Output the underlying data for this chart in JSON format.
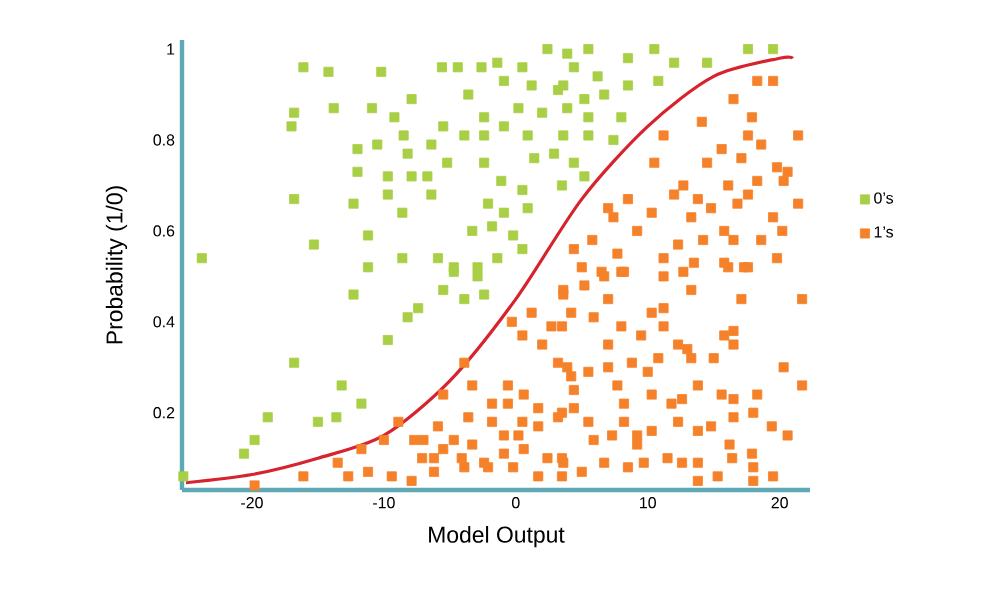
{
  "chart_data": {
    "type": "scatter",
    "xlabel": "Model Output",
    "ylabel": "Probability (1/0)",
    "xlim": [
      -25.3,
      22.3
    ],
    "ylim": [
      0.03,
      1.02
    ],
    "xticks": [
      -20,
      -10,
      0,
      10,
      20
    ],
    "yticks": [
      0.2,
      0.4,
      0.6,
      0.8,
      1
    ],
    "marker": "square",
    "legend": "right",
    "series": [
      {
        "name": "0’s",
        "color": "#a8cf45",
        "x": [
          -16.1,
          -14.2,
          -10.2,
          -16.8,
          -17,
          -13.8,
          -10.9,
          -7.9,
          -9.2,
          -12,
          -10.5,
          -8.5,
          -8.2,
          -6.4,
          -12,
          -9.7,
          -7.9,
          -6.7,
          -9.7,
          -6.4,
          -5.2,
          -3.9,
          -5.5,
          -2.4,
          -3.6,
          -5.6,
          -4.4,
          -2.6,
          -1.4,
          0.5,
          2.4,
          3.9,
          -0.9,
          1.2,
          3.2,
          0.2,
          -2.4,
          2.0,
          -0.9,
          0.9,
          1.4,
          2.9,
          3.6,
          -2.4,
          -1.1,
          0.5,
          0.9,
          -0.9,
          -2.1,
          -3.3,
          -1.8,
          -0.2,
          -1.4,
          0.5,
          3.5,
          -16.8,
          -12.3,
          -8.6,
          -11.2,
          -15.3,
          -23.8,
          -8.6,
          -5.9,
          -2.9,
          -4.7,
          5.5,
          4.4,
          8.5,
          10.5,
          12,
          14.5,
          17.6,
          19.5,
          6.2,
          3.6,
          8.5,
          10.8,
          5.2,
          6.7,
          3.9,
          8.0,
          5.5,
          5.5,
          7.4,
          4.4,
          5.2,
          -11.2,
          -4.7,
          -2.9,
          -5.5,
          -3.9,
          -2.4,
          -12.3,
          -7.4,
          -8.2,
          -9.7,
          -16.8,
          -13.2,
          -11.7,
          -18.8,
          -15,
          -13.6,
          -19.8,
          -20.6,
          -25.2
        ],
        "values": [
          0.96,
          0.95,
          0.95,
          0.86,
          0.83,
          0.87,
          0.87,
          0.89,
          0.85,
          0.78,
          0.79,
          0.81,
          0.77,
          0.79,
          0.73,
          0.72,
          0.72,
          0.72,
          0.68,
          0.68,
          0.75,
          0.81,
          0.83,
          0.81,
          0.9,
          0.96,
          0.96,
          0.96,
          0.97,
          0.96,
          1.0,
          0.99,
          0.93,
          0.92,
          0.91,
          0.87,
          0.85,
          0.86,
          0.83,
          0.81,
          0.76,
          0.77,
          0.81,
          0.75,
          0.71,
          0.69,
          0.65,
          0.64,
          0.66,
          0.6,
          0.61,
          0.59,
          0.54,
          0.56,
          0.7,
          0.67,
          0.66,
          0.64,
          0.59,
          0.57,
          0.54,
          0.54,
          0.54,
          0.52,
          0.51,
          1.0,
          0.96,
          0.98,
          1.0,
          0.97,
          0.97,
          1.0,
          1.0,
          0.94,
          0.92,
          0.92,
          0.93,
          0.89,
          0.9,
          0.87,
          0.85,
          0.85,
          0.81,
          0.8,
          0.75,
          0.72,
          0.52,
          0.52,
          0.5,
          0.47,
          0.45,
          0.46,
          0.46,
          0.43,
          0.41,
          0.36,
          0.31,
          0.26,
          0.22,
          0.19,
          0.18,
          0.19,
          0.14,
          0.11,
          0.06
        ]
      },
      {
        "name": "1’s",
        "color": "#f5822a",
        "x": [
          18.3,
          19.5,
          16.5,
          14.1,
          17.9,
          11.2,
          15.6,
          17.6,
          18.6,
          21.4,
          17.1,
          10.5,
          14.5,
          19.8,
          20.6,
          20.3,
          18.3,
          16.1,
          12.7,
          12,
          13.8,
          17.6,
          8.5,
          7.0,
          10.3,
          14.8,
          16.8,
          21.4,
          7.4,
          13.3,
          19.5,
          20.2,
          9.2,
          15.8,
          5.8,
          12.3,
          14.2,
          16.5,
          18.6,
          4.4,
          7.7,
          11.2,
          19.8,
          6.5,
          8.2,
          13.5,
          15.8,
          17.3,
          5,
          6.7,
          8,
          11.2,
          12.7,
          16.1,
          17.6,
          5.2,
          3.6,
          7.0,
          13.3,
          17.1,
          21.7,
          4.2,
          5.9,
          10.3,
          11.2,
          11.2,
          8,
          3.5,
          9.5,
          7,
          16.5,
          15.8,
          12.3,
          13,
          16.5,
          10.8,
          15,
          8.8,
          13.3,
          3.9,
          7,
          5.5,
          10,
          20.3,
          4.2,
          7.7,
          21.7,
          13.8,
          15.6,
          18.3,
          10.3,
          4.4,
          16.5,
          11.8,
          12.6,
          8.2,
          3.5,
          4.4,
          8.2,
          12.3,
          14.8,
          16.5,
          18,
          19.4,
          20.6,
          5.5,
          5.9,
          7.3,
          9.2,
          10.3,
          13.8,
          16.2,
          3.6,
          5,
          6.7,
          8.5,
          9.7,
          11.5,
          12.6,
          13.8,
          13.8,
          15.3,
          16.4,
          17.9,
          18,
          18,
          19.5,
          9.2,
          3.6,
          1.2,
          -0.3,
          2.7,
          0.5,
          2.0,
          3.2,
          -3.9,
          -0.6,
          -3.3,
          0.6,
          -5.5,
          -1.8,
          -0.6,
          1.7,
          -3.6,
          -8.9,
          -1.8,
          0.5,
          3.2,
          1.7,
          -5.9,
          -7.7,
          -7.0,
          -10,
          -4.7,
          -3.3,
          -0.9,
          0.2,
          -5.5,
          -11.7,
          -7.1,
          -4.1,
          -6.2,
          -2.4,
          -0.9,
          0.6,
          2.4,
          -13.5,
          -11.2,
          -9.4,
          -7.9,
          -12.7,
          -16.1,
          -19.8,
          -6.2,
          -3.9,
          -2.1,
          -0.2,
          1.7,
          3.5,
          3.5
        ],
        "values": [
          0.93,
          0.93,
          0.89,
          0.84,
          0.85,
          0.81,
          0.78,
          0.81,
          0.79,
          0.81,
          0.76,
          0.75,
          0.75,
          0.74,
          0.73,
          0.71,
          0.71,
          0.7,
          0.7,
          0.68,
          0.67,
          0.68,
          0.67,
          0.65,
          0.64,
          0.65,
          0.66,
          0.66,
          0.63,
          0.63,
          0.63,
          0.6,
          0.6,
          0.6,
          0.58,
          0.57,
          0.58,
          0.58,
          0.58,
          0.56,
          0.55,
          0.54,
          0.54,
          0.51,
          0.51,
          0.53,
          0.53,
          0.52,
          0.52,
          0.5,
          0.51,
          0.5,
          0.51,
          0.52,
          0.52,
          0.48,
          0.46,
          0.45,
          0.47,
          0.45,
          0.45,
          0.42,
          0.41,
          0.42,
          0.43,
          0.39,
          0.39,
          0.39,
          0.37,
          0.35,
          0.38,
          0.37,
          0.35,
          0.34,
          0.35,
          0.32,
          0.32,
          0.31,
          0.32,
          0.3,
          0.3,
          0.29,
          0.29,
          0.3,
          0.28,
          0.26,
          0.26,
          0.26,
          0.24,
          0.24,
          0.24,
          0.25,
          0.23,
          0.22,
          0.23,
          0.22,
          0.2,
          0.21,
          0.18,
          0.18,
          0.17,
          0.19,
          0.2,
          0.17,
          0.15,
          0.18,
          0.14,
          0.15,
          0.15,
          0.16,
          0.16,
          0.13,
          0.09,
          0.07,
          0.09,
          0.08,
          0.09,
          0.1,
          0.09,
          0.09,
          0.05,
          0.06,
          0.1,
          0.11,
          0.08,
          0.05,
          0.06,
          0.13,
          0.47,
          0.42,
          0.4,
          0.39,
          0.37,
          0.35,
          0.31,
          0.31,
          0.26,
          0.26,
          0.24,
          0.24,
          0.22,
          0.22,
          0.21,
          0.19,
          0.18,
          0.18,
          0.18,
          0.19,
          0.17,
          0.17,
          0.14,
          0.14,
          0.14,
          0.14,
          0.13,
          0.15,
          0.15,
          0.12,
          0.12,
          0.1,
          0.1,
          0.1,
          0.09,
          0.11,
          0.12,
          0.1,
          0.09,
          0.07,
          0.06,
          0.05,
          0.06,
          0.06,
          0.04,
          0.07,
          0.08,
          0.08,
          0.08,
          0.06,
          0.06,
          0.1
        ]
      },
      {
        "type": "line",
        "marker": "none",
        "color": "#d7232e",
        "x": [
          -25,
          -20,
          -15,
          -10,
          -5,
          0,
          5,
          10,
          15,
          20,
          21
        ],
        "values": [
          0.046,
          0.064,
          0.1,
          0.15,
          0.27,
          0.45,
          0.67,
          0.83,
          0.94,
          0.98,
          0.98
        ]
      }
    ]
  }
}
